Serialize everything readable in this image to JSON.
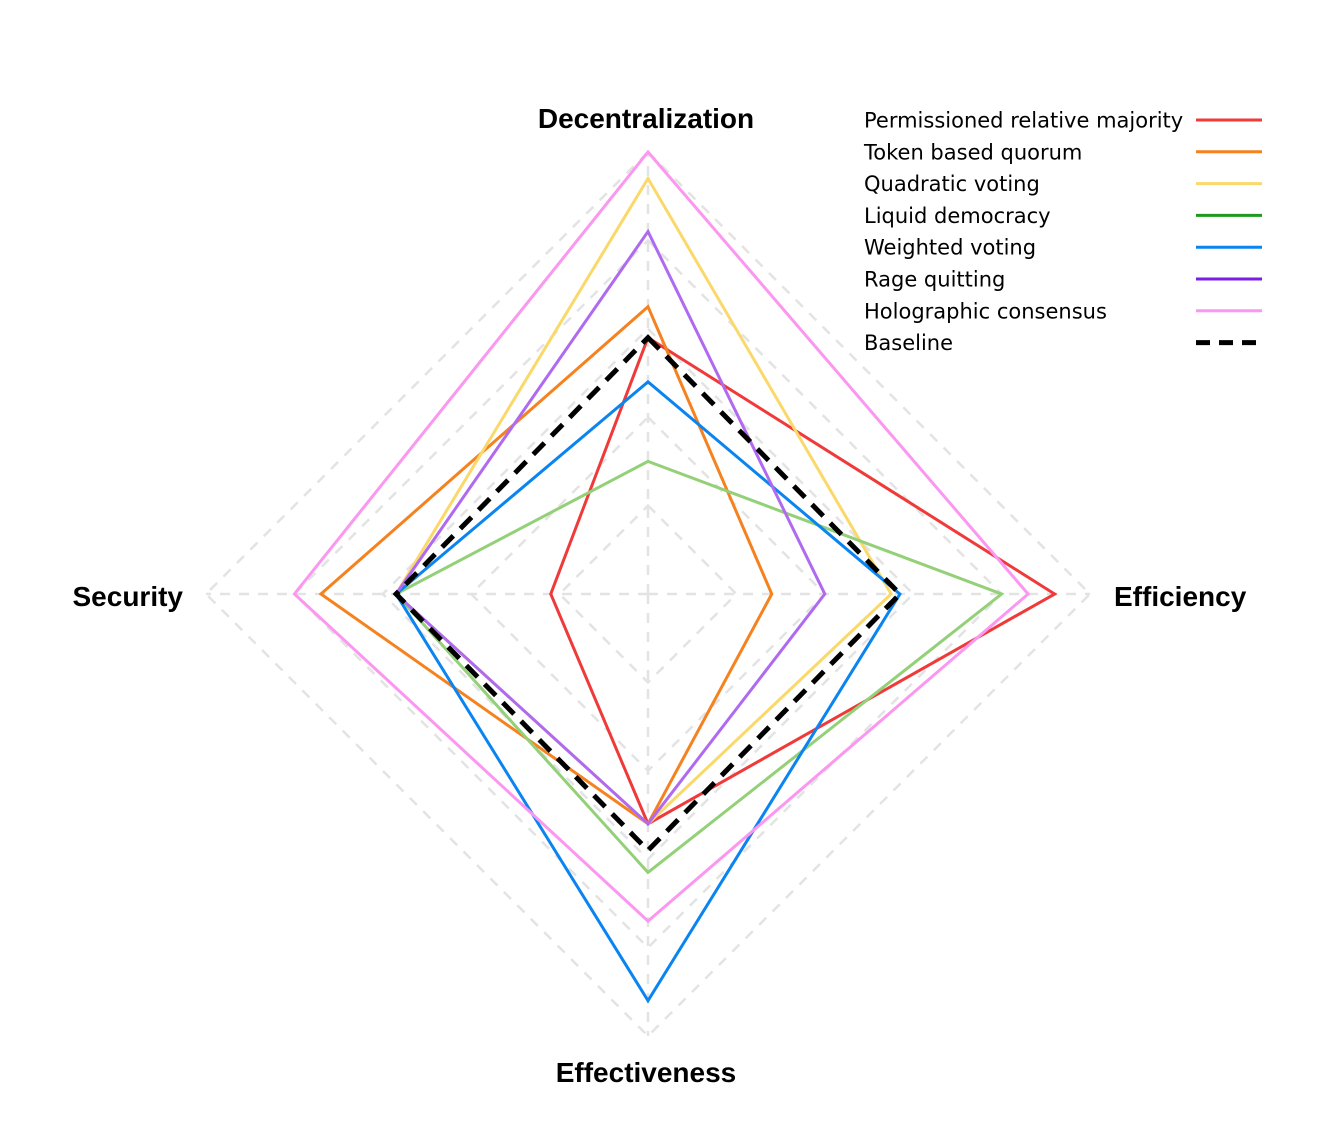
{
  "chart_data": {
    "type": "radar",
    "axes": [
      "Decentralization",
      "Efficiency",
      "Effectiveness",
      "Security"
    ],
    "rmax": 5,
    "grid_levels": [
      1,
      2,
      3,
      4,
      5
    ],
    "legend_position": "top-right",
    "series": [
      {
        "name": "Permissioned relative majority",
        "color": "#f03a3a",
        "values": [
          2.9,
          4.6,
          2.6,
          1.1
        ],
        "dashed": false
      },
      {
        "name": "Token based quorum",
        "color": "#f5821f",
        "values": [
          3.25,
          1.4,
          2.6,
          3.7
        ],
        "dashed": false
      },
      {
        "name": "Quadratic voting",
        "color": "#fad96a",
        "values": [
          4.7,
          2.75,
          2.6,
          2.85
        ],
        "dashed": false
      },
      {
        "name": "Liquid democracy",
        "color": "#93d078",
        "values": [
          1.5,
          4.0,
          3.15,
          2.85
        ],
        "dashed": false
      },
      {
        "name": "Weighted voting",
        "color": "#0a84f0",
        "values": [
          2.4,
          2.85,
          4.6,
          2.85
        ],
        "dashed": false
      },
      {
        "name": "Rage quitting",
        "color": "#b06af0",
        "values": [
          4.1,
          2.0,
          2.6,
          2.85
        ],
        "dashed": false
      },
      {
        "name": "Holographic consensus",
        "color": "#fb97f0",
        "values": [
          5.0,
          4.3,
          3.7,
          4.0
        ],
        "dashed": false
      },
      {
        "name": "Baseline",
        "color": "#000000",
        "values": [
          2.9,
          2.85,
          2.9,
          2.85
        ],
        "dashed": true
      }
    ],
    "legend_swatch_colors": [
      "#f03a3a",
      "#f5821f",
      "#fad96a",
      "#1e9a1e",
      "#0a84f0",
      "#7a1ee6",
      "#fb97f0",
      "#000000"
    ]
  }
}
